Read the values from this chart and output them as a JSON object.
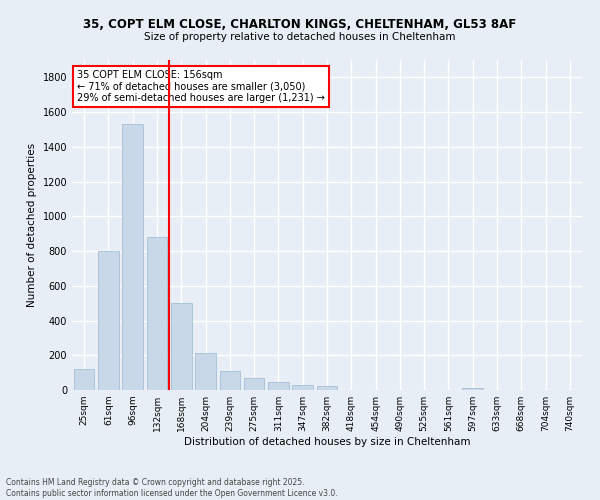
{
  "title_line1": "35, COPT ELM CLOSE, CHARLTON KINGS, CHELTENHAM, GL53 8AF",
  "title_line2": "Size of property relative to detached houses in Cheltenham",
  "xlabel": "Distribution of detached houses by size in Cheltenham",
  "ylabel": "Number of detached properties",
  "bar_labels": [
    "25sqm",
    "61sqm",
    "96sqm",
    "132sqm",
    "168sqm",
    "204sqm",
    "239sqm",
    "275sqm",
    "311sqm",
    "347sqm",
    "382sqm",
    "418sqm",
    "454sqm",
    "490sqm",
    "525sqm",
    "561sqm",
    "597sqm",
    "633sqm",
    "668sqm",
    "704sqm",
    "740sqm"
  ],
  "bar_values": [
    120,
    800,
    1530,
    880,
    500,
    215,
    110,
    68,
    45,
    30,
    22,
    0,
    0,
    0,
    0,
    0,
    14,
    0,
    0,
    0,
    0
  ],
  "bar_color": "#c8d8e8",
  "bar_edge_color": "#a0b8d0",
  "vline_x": 3.5,
  "vline_color": "red",
  "ylim": [
    0,
    1900
  ],
  "yticks": [
    0,
    200,
    400,
    600,
    800,
    1000,
    1200,
    1400,
    1600,
    1800
  ],
  "annotation_text": "35 COPT ELM CLOSE: 156sqm\n← 71% of detached houses are smaller (3,050)\n29% of semi-detached houses are larger (1,231) →",
  "annotation_box_color": "#ffffff",
  "annotation_box_edgecolor": "red",
  "footer_text": "Contains HM Land Registry data © Crown copyright and database right 2025.\nContains public sector information licensed under the Open Government Licence v3.0.",
  "bg_color": "#e8eef5",
  "grid_color": "#ffffff"
}
